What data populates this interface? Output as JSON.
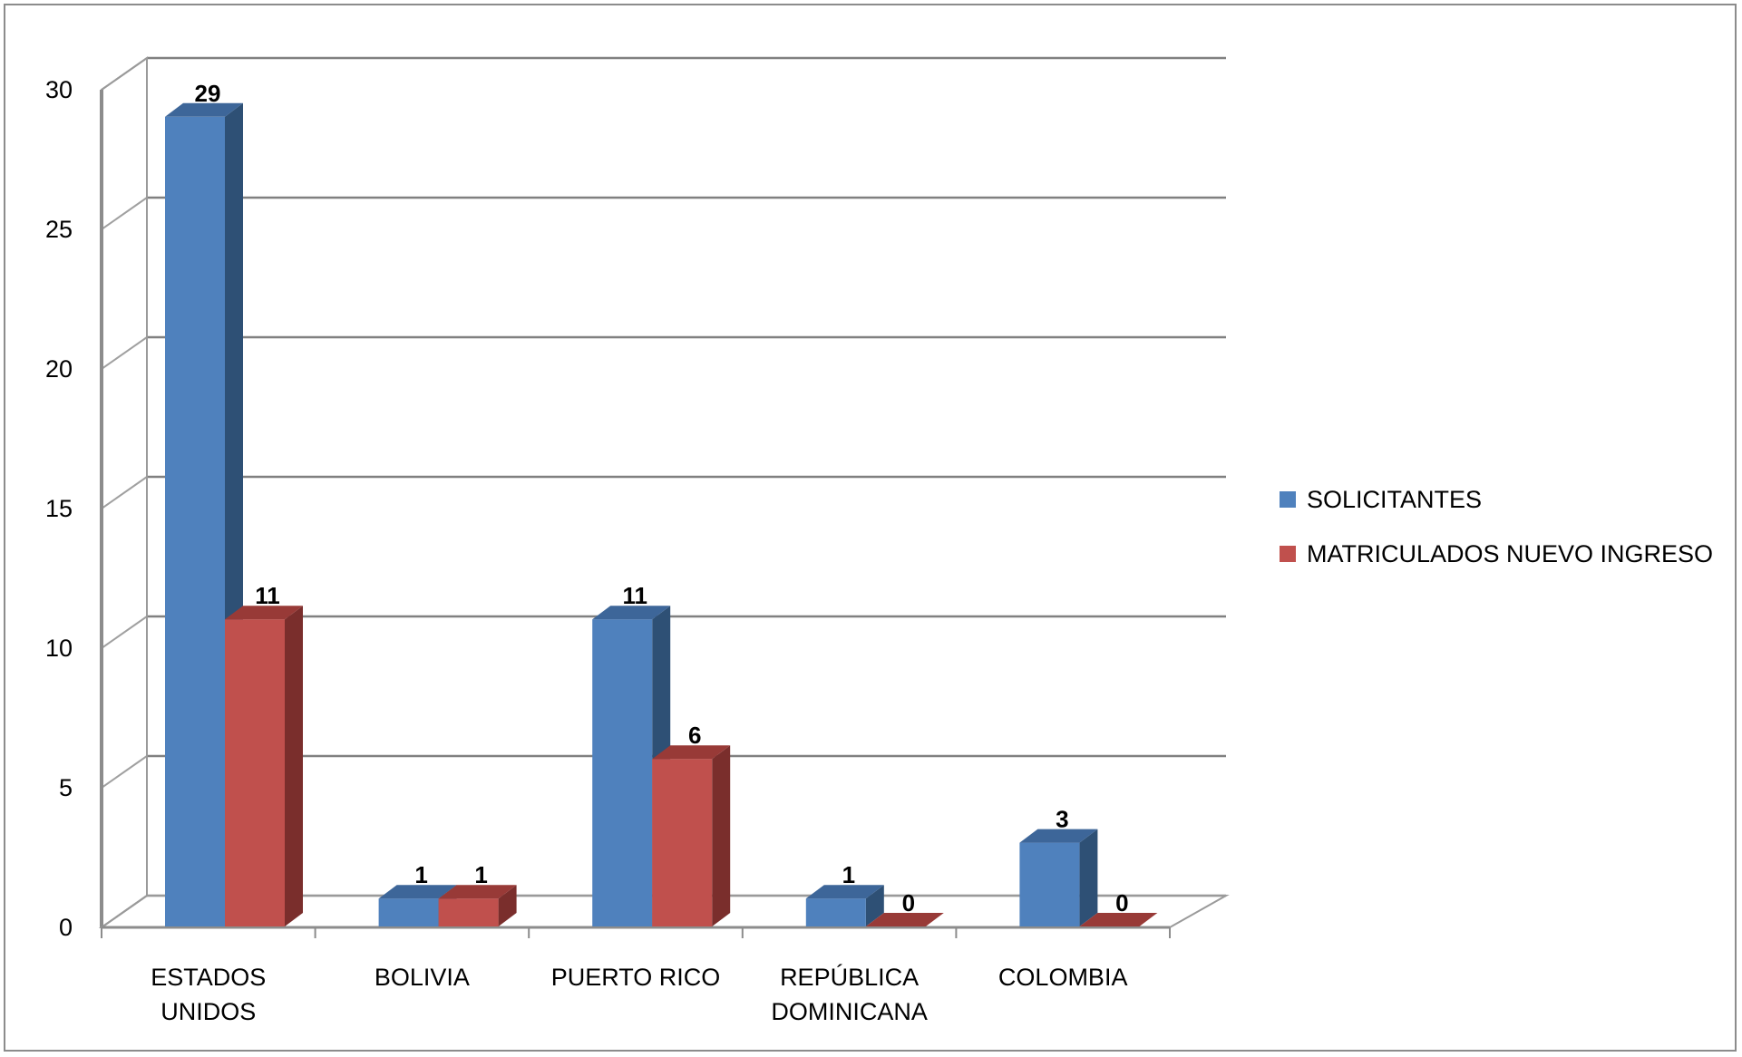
{
  "chart_data": {
    "type": "bar",
    "categories": [
      [
        "ESTADOS",
        "UNIDOS"
      ],
      [
        "BOLIVIA"
      ],
      [
        "PUERTO RICO"
      ],
      [
        "REPÚBLICA",
        "DOMINICANA"
      ],
      [
        "COLOMBIA"
      ]
    ],
    "series": [
      {
        "name": "SOLICITANTES",
        "values": [
          29,
          1,
          11,
          1,
          3
        ],
        "color": "#4f81bd",
        "side": "#2e5075",
        "top": "#3d6699"
      },
      {
        "name": "MATRICULADOS NUEVO  INGRESO",
        "values": [
          11,
          1,
          6,
          0,
          0
        ],
        "color": "#c0504d",
        "side": "#7a2e2c",
        "top": "#983a37"
      }
    ],
    "yticks": [
      "0",
      "5",
      "10",
      "15",
      "20",
      "25",
      "30"
    ],
    "ylim": [
      0,
      30
    ],
    "grid": true,
    "legend": "right",
    "style": "3d-clustered-column"
  }
}
